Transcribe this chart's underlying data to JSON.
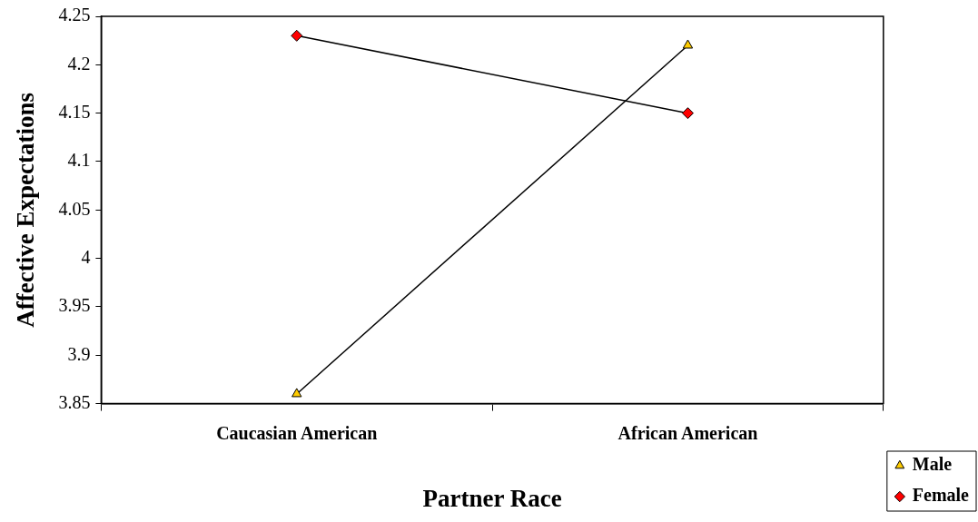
{
  "chart_data": {
    "type": "line",
    "xlabel": "Partner Race",
    "ylabel": "Affective Expectations",
    "categories": [
      "Caucasian American",
      "African American"
    ],
    "series": [
      {
        "name": "Male",
        "color": "#ffcc00",
        "marker": "triangle",
        "values": [
          3.86,
          4.22
        ]
      },
      {
        "name": "Female",
        "color": "#ff0000",
        "marker": "diamond",
        "values": [
          4.23,
          4.15
        ]
      }
    ],
    "ylim": [
      3.85,
      4.25
    ],
    "yticks": [
      3.85,
      3.9,
      3.95,
      4,
      4.05,
      4.1,
      4.15,
      4.2,
      4.25
    ],
    "grid": false,
    "legend": "right",
    "line_style": "solid"
  }
}
